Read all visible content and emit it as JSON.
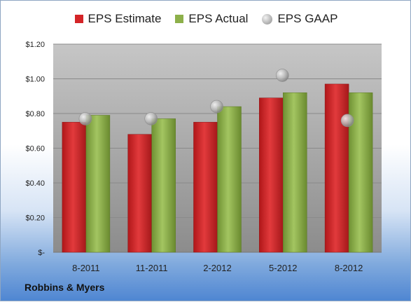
{
  "legend": {
    "estimate": "EPS Estimate",
    "actual": "EPS Actual",
    "gaap": "EPS GAAP"
  },
  "company": "Robbins & Myers",
  "colors": {
    "estimate": "#d42427",
    "actual": "#8db04a",
    "gaap": "#b4b4b4"
  },
  "chart_data": {
    "type": "bar",
    "categories": [
      "8-2011",
      "11-2011",
      "2-2012",
      "5-2012",
      "8-2012"
    ],
    "series": [
      {
        "name": "EPS Estimate",
        "values": [
          0.75,
          0.68,
          0.75,
          0.89,
          0.97
        ]
      },
      {
        "name": "EPS Actual",
        "values": [
          0.79,
          0.77,
          0.84,
          0.92,
          0.92
        ]
      },
      {
        "name": "EPS GAAP",
        "type": "bubble",
        "values": [
          0.77,
          0.77,
          0.84,
          1.02,
          0.76
        ]
      }
    ],
    "ylim": [
      0,
      1.2
    ],
    "yticks": [
      0,
      0.2,
      0.4,
      0.6,
      0.8,
      1.0,
      1.2
    ],
    "ytick_labels": [
      "$-",
      "$0.20",
      "$0.40",
      "$0.60",
      "$0.80",
      "$1.00",
      "$1.20"
    ],
    "grid": true,
    "legend_position": "top"
  }
}
